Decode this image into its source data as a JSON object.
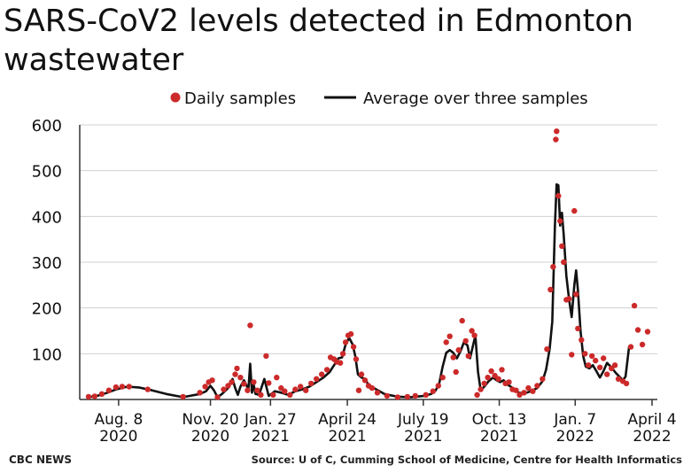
{
  "title": "SARS-CoV2 levels detected in Edmonton wastewater",
  "credit": "CBC NEWS",
  "source": "Source: U of C, Cumming School of Medicine, Centre for Health Informatics",
  "colors": {
    "dots": "#cc2a2a",
    "line": "#111111",
    "axis": "#333333",
    "grid": "#d0d0d0"
  },
  "chart_data": {
    "type": "scatter",
    "grid": true,
    "legend_position": "top",
    "ylim": [
      0,
      600
    ],
    "xlim": [
      "2020-06-25",
      "2022-04-10"
    ],
    "yticks": [
      "100",
      "200",
      "300",
      "400",
      "500",
      "600"
    ],
    "xticks": [
      {
        "date": "2020-08-08",
        "line1": "Aug. 8",
        "line2": "2020"
      },
      {
        "date": "2020-11-20",
        "line1": "Nov. 20",
        "line2": "2020"
      },
      {
        "date": "2021-01-27",
        "line1": "Jan. 27",
        "line2": "2021"
      },
      {
        "date": "2021-04-24",
        "line1": "April 24",
        "line2": "2021"
      },
      {
        "date": "2021-07-19",
        "line1": "July 19",
        "line2": "2021"
      },
      {
        "date": "2021-10-13",
        "line1": "Oct. 13",
        "line2": "2021"
      },
      {
        "date": "2022-01-07",
        "line1": "Jan. 7",
        "line2": "2022"
      },
      {
        "date": "2022-04-04",
        "line1": "April 4",
        "line2": "2022"
      }
    ],
    "series": [
      {
        "name": "Daily samples",
        "marker": "dot",
        "points": [
          [
            "2020-07-05",
            6
          ],
          [
            "2020-07-12",
            7
          ],
          [
            "2020-07-20",
            12
          ],
          [
            "2020-07-28",
            20
          ],
          [
            "2020-08-05",
            27
          ],
          [
            "2020-08-12",
            28
          ],
          [
            "2020-08-20",
            28
          ],
          [
            "2020-09-10",
            22
          ],
          [
            "2020-10-20",
            6
          ],
          [
            "2020-11-08",
            15
          ],
          [
            "2020-11-14",
            28
          ],
          [
            "2020-11-18",
            38
          ],
          [
            "2020-11-22",
            42
          ],
          [
            "2020-11-28",
            5
          ],
          [
            "2020-12-05",
            22
          ],
          [
            "2020-12-10",
            30
          ],
          [
            "2020-12-14",
            38
          ],
          [
            "2020-12-18",
            55
          ],
          [
            "2020-12-20",
            68
          ],
          [
            "2020-12-24",
            48
          ],
          [
            "2020-12-28",
            34
          ],
          [
            "2021-01-01",
            20
          ],
          [
            "2021-01-04",
            162
          ],
          [
            "2021-01-08",
            38
          ],
          [
            "2021-01-12",
            20
          ],
          [
            "2021-01-16",
            10
          ],
          [
            "2021-01-22",
            95
          ],
          [
            "2021-01-25",
            36
          ],
          [
            "2021-01-30",
            10
          ],
          [
            "2021-02-03",
            48
          ],
          [
            "2021-02-08",
            25
          ],
          [
            "2021-02-12",
            18
          ],
          [
            "2021-02-18",
            10
          ],
          [
            "2021-02-24",
            22
          ],
          [
            "2021-03-02",
            28
          ],
          [
            "2021-03-08",
            20
          ],
          [
            "2021-03-14",
            35
          ],
          [
            "2021-03-20",
            45
          ],
          [
            "2021-03-26",
            55
          ],
          [
            "2021-04-01",
            65
          ],
          [
            "2021-04-05",
            92
          ],
          [
            "2021-04-09",
            88
          ],
          [
            "2021-04-12",
            82
          ],
          [
            "2021-04-16",
            80
          ],
          [
            "2021-04-19",
            100
          ],
          [
            "2021-04-22",
            125
          ],
          [
            "2021-04-25",
            140
          ],
          [
            "2021-04-28",
            143
          ],
          [
            "2021-05-01",
            115
          ],
          [
            "2021-05-04",
            88
          ],
          [
            "2021-05-07",
            20
          ],
          [
            "2021-05-10",
            55
          ],
          [
            "2021-05-14",
            42
          ],
          [
            "2021-05-18",
            30
          ],
          [
            "2021-05-22",
            25
          ],
          [
            "2021-05-28",
            15
          ],
          [
            "2021-06-08",
            8
          ],
          [
            "2021-06-20",
            5
          ],
          [
            "2021-07-01",
            6
          ],
          [
            "2021-07-10",
            8
          ],
          [
            "2021-07-22",
            10
          ],
          [
            "2021-07-30",
            18
          ],
          [
            "2021-08-05",
            30
          ],
          [
            "2021-08-10",
            48
          ],
          [
            "2021-08-14",
            125
          ],
          [
            "2021-08-18",
            138
          ],
          [
            "2021-08-22",
            92
          ],
          [
            "2021-08-25",
            60
          ],
          [
            "2021-08-28",
            108
          ],
          [
            "2021-09-01",
            172
          ],
          [
            "2021-09-05",
            128
          ],
          [
            "2021-09-08",
            95
          ],
          [
            "2021-09-12",
            150
          ],
          [
            "2021-09-15",
            140
          ],
          [
            "2021-09-18",
            10
          ],
          [
            "2021-09-22",
            22
          ],
          [
            "2021-09-26",
            35
          ],
          [
            "2021-09-30",
            48
          ],
          [
            "2021-10-04",
            62
          ],
          [
            "2021-10-08",
            52
          ],
          [
            "2021-10-12",
            45
          ],
          [
            "2021-10-16",
            65
          ],
          [
            "2021-10-20",
            35
          ],
          [
            "2021-10-24",
            38
          ],
          [
            "2021-10-28",
            22
          ],
          [
            "2021-11-01",
            20
          ],
          [
            "2021-11-05",
            10
          ],
          [
            "2021-11-10",
            15
          ],
          [
            "2021-11-15",
            25
          ],
          [
            "2021-11-20",
            18
          ],
          [
            "2021-11-25",
            30
          ],
          [
            "2021-12-01",
            45
          ],
          [
            "2021-12-06",
            110
          ],
          [
            "2021-12-10",
            240
          ],
          [
            "2021-12-13",
            290
          ],
          [
            "2021-12-16",
            568
          ],
          [
            "2021-12-17",
            586
          ],
          [
            "2021-12-19",
            445
          ],
          [
            "2021-12-21",
            390
          ],
          [
            "2021-12-23",
            335
          ],
          [
            "2021-12-25",
            300
          ],
          [
            "2021-12-28",
            218
          ],
          [
            "2021-12-31",
            220
          ],
          [
            "2022-01-03",
            98
          ],
          [
            "2022-01-06",
            412
          ],
          [
            "2022-01-08",
            230
          ],
          [
            "2022-01-10",
            155
          ],
          [
            "2022-01-14",
            130
          ],
          [
            "2022-01-18",
            100
          ],
          [
            "2022-01-22",
            75
          ],
          [
            "2022-01-26",
            95
          ],
          [
            "2022-01-30",
            85
          ],
          [
            "2022-02-04",
            70
          ],
          [
            "2022-02-08",
            90
          ],
          [
            "2022-02-12",
            55
          ],
          [
            "2022-02-17",
            68
          ],
          [
            "2022-02-21",
            75
          ],
          [
            "2022-02-25",
            45
          ],
          [
            "2022-03-02",
            40
          ],
          [
            "2022-03-06",
            35
          ],
          [
            "2022-03-11",
            115
          ],
          [
            "2022-03-15",
            205
          ],
          [
            "2022-03-19",
            152
          ],
          [
            "2022-03-24",
            120
          ],
          [
            "2022-03-30",
            148
          ]
        ]
      },
      {
        "name": "Average over three samples",
        "marker": "line",
        "points": [
          [
            "2020-07-05",
            5
          ],
          [
            "2020-07-15",
            8
          ],
          [
            "2020-07-25",
            14
          ],
          [
            "2020-08-05",
            22
          ],
          [
            "2020-08-18",
            28
          ],
          [
            "2020-09-01",
            26
          ],
          [
            "2020-09-15",
            20
          ],
          [
            "2020-10-01",
            12
          ],
          [
            "2020-10-20",
            5
          ],
          [
            "2020-10-28",
            8
          ],
          [
            "2020-11-08",
            12
          ],
          [
            "2020-11-15",
            18
          ],
          [
            "2020-11-20",
            30
          ],
          [
            "2020-11-24",
            20
          ],
          [
            "2020-11-28",
            5
          ],
          [
            "2020-12-03",
            12
          ],
          [
            "2020-12-10",
            25
          ],
          [
            "2020-12-15",
            45
          ],
          [
            "2020-12-18",
            25
          ],
          [
            "2020-12-21",
            10
          ],
          [
            "2020-12-24",
            28
          ],
          [
            "2020-12-28",
            42
          ],
          [
            "2021-01-02",
            22
          ],
          [
            "2021-01-04",
            78
          ],
          [
            "2021-01-06",
            15
          ],
          [
            "2021-01-08",
            32
          ],
          [
            "2021-01-10",
            12
          ],
          [
            "2021-01-14",
            10
          ],
          [
            "2021-01-20",
            45
          ],
          [
            "2021-01-25",
            8
          ],
          [
            "2021-02-01",
            18
          ],
          [
            "2021-02-08",
            15
          ],
          [
            "2021-02-16",
            10
          ],
          [
            "2021-02-24",
            18
          ],
          [
            "2021-03-04",
            22
          ],
          [
            "2021-03-12",
            28
          ],
          [
            "2021-03-20",
            38
          ],
          [
            "2021-03-28",
            48
          ],
          [
            "2021-04-04",
            60
          ],
          [
            "2021-04-10",
            78
          ],
          [
            "2021-04-14",
            90
          ],
          [
            "2021-04-18",
            92
          ],
          [
            "2021-04-22",
            120
          ],
          [
            "2021-04-26",
            135
          ],
          [
            "2021-04-30",
            120
          ],
          [
            "2021-05-03",
            95
          ],
          [
            "2021-05-06",
            55
          ],
          [
            "2021-05-10",
            48
          ],
          [
            "2021-05-14",
            45
          ],
          [
            "2021-05-18",
            32
          ],
          [
            "2021-05-24",
            25
          ],
          [
            "2021-06-05",
            12
          ],
          [
            "2021-06-20",
            6
          ],
          [
            "2021-07-05",
            5
          ],
          [
            "2021-07-20",
            8
          ],
          [
            "2021-07-28",
            12
          ],
          [
            "2021-08-02",
            20
          ],
          [
            "2021-08-06",
            35
          ],
          [
            "2021-08-10",
            72
          ],
          [
            "2021-08-14",
            102
          ],
          [
            "2021-08-18",
            108
          ],
          [
            "2021-08-22",
            102
          ],
          [
            "2021-08-26",
            90
          ],
          [
            "2021-08-30",
            105
          ],
          [
            "2021-09-03",
            125
          ],
          [
            "2021-09-07",
            118
          ],
          [
            "2021-09-10",
            90
          ],
          [
            "2021-09-13",
            115
          ],
          [
            "2021-09-16",
            140
          ],
          [
            "2021-09-19",
            60
          ],
          [
            "2021-09-22",
            20
          ],
          [
            "2021-09-26",
            28
          ],
          [
            "2021-10-01",
            40
          ],
          [
            "2021-10-06",
            48
          ],
          [
            "2021-10-10",
            42
          ],
          [
            "2021-10-14",
            38
          ],
          [
            "2021-10-18",
            42
          ],
          [
            "2021-10-22",
            33
          ],
          [
            "2021-10-26",
            28
          ],
          [
            "2021-10-30",
            22
          ],
          [
            "2021-11-04",
            15
          ],
          [
            "2021-11-10",
            13
          ],
          [
            "2021-11-18",
            18
          ],
          [
            "2021-11-25",
            25
          ],
          [
            "2021-12-01",
            40
          ],
          [
            "2021-12-05",
            65
          ],
          [
            "2021-12-09",
            110
          ],
          [
            "2021-12-12",
            170
          ],
          [
            "2021-12-15",
            380
          ],
          [
            "2021-12-17",
            470
          ],
          [
            "2021-12-19",
            468
          ],
          [
            "2021-12-21",
            380
          ],
          [
            "2021-12-23",
            408
          ],
          [
            "2021-12-25",
            360
          ],
          [
            "2021-12-28",
            270
          ],
          [
            "2021-12-31",
            220
          ],
          [
            "2022-01-03",
            180
          ],
          [
            "2022-01-06",
            250
          ],
          [
            "2022-01-08",
            282
          ],
          [
            "2022-01-10",
            240
          ],
          [
            "2022-01-13",
            150
          ],
          [
            "2022-01-16",
            95
          ],
          [
            "2022-01-19",
            72
          ],
          [
            "2022-01-23",
            68
          ],
          [
            "2022-01-27",
            75
          ],
          [
            "2022-01-31",
            62
          ],
          [
            "2022-02-04",
            48
          ],
          [
            "2022-02-08",
            62
          ],
          [
            "2022-02-12",
            80
          ],
          [
            "2022-02-17",
            70
          ],
          [
            "2022-02-22",
            58
          ],
          [
            "2022-02-26",
            50
          ],
          [
            "2022-03-02",
            42
          ],
          [
            "2022-03-05",
            50
          ],
          [
            "2022-03-09",
            115
          ]
        ]
      }
    ]
  }
}
